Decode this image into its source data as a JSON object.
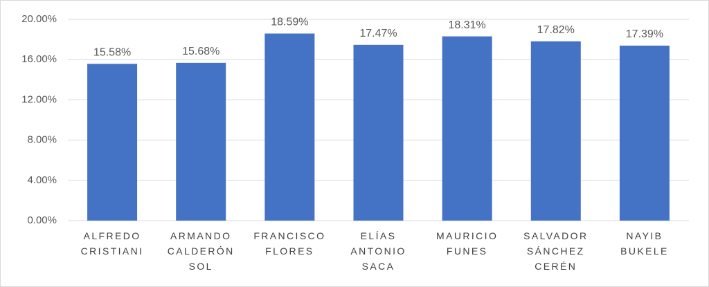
{
  "chart_data": {
    "type": "bar",
    "categories": [
      "ALFREDO CRISTIANI",
      "ARMANDO CALDERÓN SOL",
      "FRANCISCO FLORES",
      "ELÍAS ANTONIO SACA",
      "MAURICIO FUNES",
      "SALVADOR SÁNCHEZ CERÉN",
      "NAYIB BUKELE"
    ],
    "values": [
      15.58,
      15.68,
      18.59,
      17.47,
      18.31,
      17.82,
      17.39
    ],
    "value_labels": [
      "15.58%",
      "15.68%",
      "18.59%",
      "17.47%",
      "18.31%",
      "17.82%",
      "17.39%"
    ],
    "color": "#4472c4",
    "ylim": [
      0,
      20
    ],
    "yticks": [
      {
        "value": 0,
        "label": "0.00%"
      },
      {
        "value": 4,
        "label": "4.00%"
      },
      {
        "value": 8,
        "label": "8.00%"
      },
      {
        "value": 12,
        "label": "12.00%"
      },
      {
        "value": 16,
        "label": "16.00%"
      },
      {
        "value": 20,
        "label": "20.00%"
      }
    ],
    "grid": true
  }
}
